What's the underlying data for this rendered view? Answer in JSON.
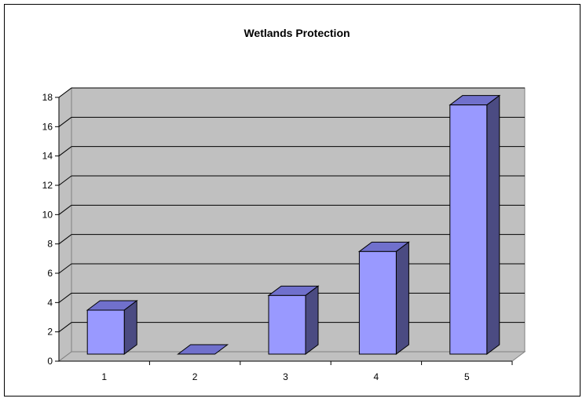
{
  "chart_data": {
    "type": "bar",
    "title": "Wetlands Protection",
    "xlabel": "",
    "ylabel": "",
    "categories": [
      "1",
      "2",
      "3",
      "4",
      "5"
    ],
    "values": [
      3,
      0,
      4,
      7,
      17
    ],
    "ylim": [
      0,
      18
    ],
    "yticks": [
      "0",
      "2",
      "4",
      "6",
      "8",
      "10",
      "12",
      "14",
      "16",
      "18"
    ],
    "grid": true,
    "legend": "none",
    "style": "3d-column",
    "colors": {
      "bar_front": "#9999ff",
      "bar_side": "#4b4b82",
      "bar_top": "#7070cc",
      "plot_wall": "#c0c0c0",
      "gridline": "#000000"
    }
  }
}
